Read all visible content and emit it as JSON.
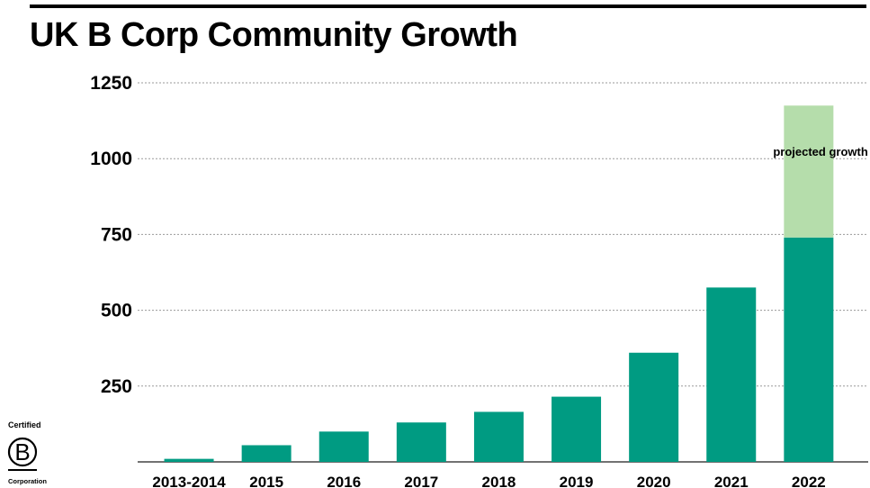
{
  "title": "UK B Corp Community Growth",
  "colors": {
    "bar": "#009b82",
    "projected": "#b5ddab",
    "grid": "#9a9a9a",
    "text": "#000000"
  },
  "logo": {
    "top_text": "Certified",
    "letter": "B",
    "bottom_text": "Corporation"
  },
  "chart_data": {
    "type": "bar",
    "title": "UK B Corp Community Growth",
    "xlabel": "",
    "ylabel": "",
    "categories": [
      "2013-2014",
      "2015",
      "2016",
      "2017",
      "2018",
      "2019",
      "2020",
      "2021",
      "2022"
    ],
    "series": [
      {
        "values": [
          10,
          55,
          100,
          130,
          165,
          215,
          360,
          575,
          740
        ]
      },
      {
        "values": [
          0,
          0,
          0,
          0,
          0,
          0,
          0,
          0,
          435
        ]
      }
    ],
    "stacked": true,
    "yticks": [
      250,
      500,
      750,
      1000,
      1250
    ],
    "ylim": [
      0,
      1250
    ],
    "grid": "horizontal dashed",
    "legend": "none",
    "annotations": [
      {
        "category": "2022",
        "text": "projected growth"
      }
    ]
  }
}
